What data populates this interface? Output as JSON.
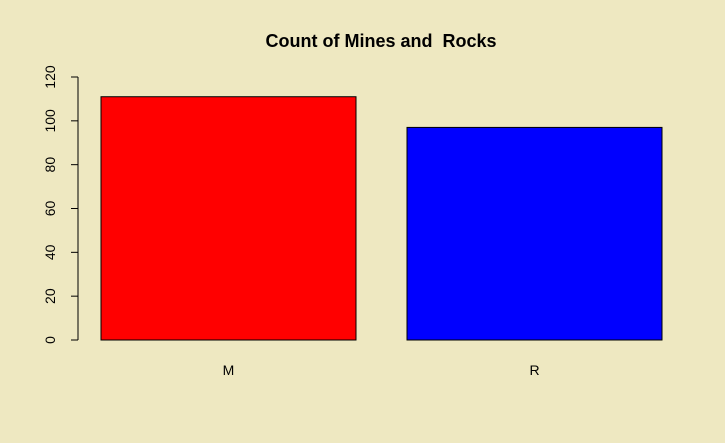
{
  "chart_data": {
    "type": "bar",
    "title": "Count of Mines and  Rocks",
    "xlabel": "",
    "ylabel": "",
    "categories": [
      "M",
      "R"
    ],
    "values": [
      111,
      97
    ],
    "colors": [
      "#FF0000",
      "#0000FF"
    ],
    "bar_border_color": "#000000",
    "ylim": [
      0,
      120
    ],
    "y_ticks": [
      0,
      20,
      40,
      60,
      80,
      100,
      120
    ],
    "grid": false,
    "legend": "none",
    "background_color": "#EEE8C1"
  }
}
